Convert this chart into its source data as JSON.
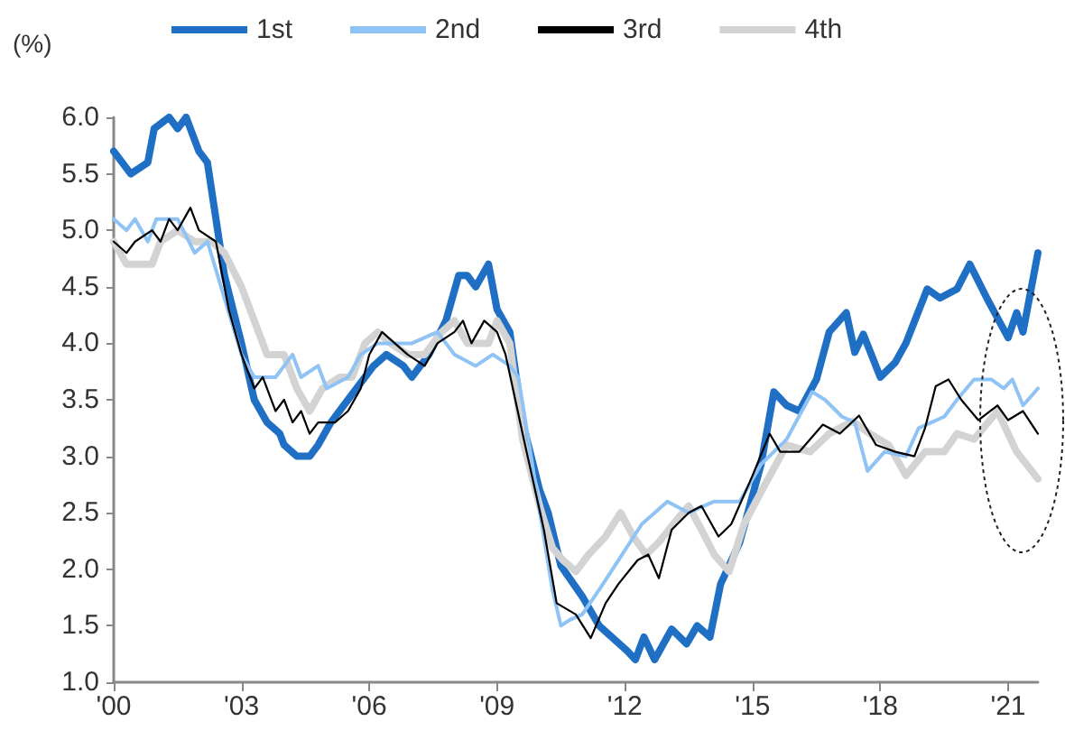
{
  "chart_data": {
    "type": "line",
    "ylabel": "(%)",
    "xlim": [
      2000,
      2021.7
    ],
    "ylim": [
      1.0,
      6.0
    ],
    "xticks": [
      {
        "value": 2000,
        "label": "'00"
      },
      {
        "value": 2003,
        "label": "'03"
      },
      {
        "value": 2006,
        "label": "'06"
      },
      {
        "value": 2009,
        "label": "'09"
      },
      {
        "value": 2012,
        "label": "'12"
      },
      {
        "value": 2015,
        "label": "'15"
      },
      {
        "value": 2018,
        "label": "'18"
      },
      {
        "value": 2021,
        "label": "'21"
      }
    ],
    "yticks": [
      {
        "value": 1,
        "label": "1.0"
      },
      {
        "value": 1.5,
        "label": "1.5"
      },
      {
        "value": 2,
        "label": "2.0"
      },
      {
        "value": 2.5,
        "label": "2.5"
      },
      {
        "value": 3,
        "label": "3.0"
      },
      {
        "value": 3.5,
        "label": "3.5"
      },
      {
        "value": 4,
        "label": "4.0"
      },
      {
        "value": 4.5,
        "label": "4.5"
      },
      {
        "value": 5,
        "label": "5.0"
      },
      {
        "value": 5.5,
        "label": "5.5"
      },
      {
        "value": 6,
        "label": "6.0"
      }
    ],
    "grid": false,
    "legend": "top",
    "marker": "none",
    "line_style": "solid",
    "series": [
      {
        "name": "1st",
        "color": "#1f6fc5",
        "x": [
          2000,
          2000.4,
          2000.8,
          2000.95,
          2001.3,
          2001.5,
          2001.7,
          2002.0,
          2002.2,
          2002.4,
          2002.6,
          2003.0,
          2003.3,
          2003.6,
          2003.9,
          2004.0,
          2004.3,
          2004.6,
          2004.8,
          2005.1,
          2005.3,
          2005.7,
          2006.1,
          2006.4,
          2006.8,
          2007.0,
          2007.4,
          2007.8,
          2008.1,
          2008.3,
          2008.5,
          2008.8,
          2009.0,
          2009.3,
          2009.6,
          2010.0,
          2010.2,
          2010.5,
          2011.0,
          2011.4,
          2012.05,
          2012.25,
          2012.45,
          2012.7,
          2013.1,
          2013.45,
          2013.7,
          2014.0,
          2014.25,
          2014.7,
          2015.2,
          2015.5,
          2015.8,
          2016.1,
          2016.5,
          2016.8,
          2017.2,
          2017.4,
          2017.6,
          2018.0,
          2018.35,
          2018.6,
          2019.1,
          2019.4,
          2019.8,
          2020.1,
          2020.5,
          2021.0,
          2021.2,
          2021.35,
          2021.7
        ],
        "values": [
          5.7,
          5.5,
          5.6,
          5.9,
          6.0,
          5.9,
          6.0,
          5.7,
          5.6,
          5.1,
          4.6,
          4.0,
          3.5,
          3.3,
          3.2,
          3.1,
          3.0,
          3.0,
          3.1,
          3.3,
          3.4,
          3.6,
          3.8,
          3.9,
          3.8,
          3.7,
          3.9,
          4.2,
          4.6,
          4.6,
          4.5,
          4.7,
          4.3,
          4.1,
          3.3,
          2.7,
          2.5,
          2.03,
          1.76,
          1.5,
          1.28,
          1.2,
          1.4,
          1.2,
          1.47,
          1.34,
          1.5,
          1.4,
          1.87,
          2.24,
          2.93,
          3.57,
          3.45,
          3.4,
          3.68,
          4.1,
          4.27,
          3.92,
          4.08,
          3.7,
          3.83,
          4.0,
          4.48,
          4.4,
          4.48,
          4.7,
          4.4,
          4.05,
          4.27,
          4.1,
          4.8
        ]
      },
      {
        "name": "2nd",
        "color": "#8fc3f5",
        "x": [
          2000,
          2000.3,
          2000.5,
          2000.8,
          2001.0,
          2001.5,
          2001.9,
          2002.2,
          2002.6,
          2003.0,
          2003.3,
          2003.8,
          2004.2,
          2004.4,
          2004.8,
          2005.0,
          2005.5,
          2005.8,
          2006.2,
          2007.0,
          2007.6,
          2008.0,
          2008.5,
          2008.9,
          2009.3,
          2009.5,
          2009.8,
          2010.05,
          2010.3,
          2010.5,
          2010.7,
          2011.0,
          2011.4,
          2011.85,
          2012.4,
          2013.0,
          2013.5,
          2014.1,
          2014.7,
          2015.2,
          2015.8,
          2016.4,
          2016.7,
          2017.1,
          2017.4,
          2017.7,
          2018.1,
          2018.6,
          2018.9,
          2019.5,
          2019.8,
          2020.2,
          2020.6,
          2020.9,
          2021.1,
          2021.35,
          2021.7
        ],
        "values": [
          5.1,
          5.0,
          5.1,
          4.9,
          5.1,
          5.1,
          4.8,
          4.9,
          4.4,
          3.9,
          3.7,
          3.7,
          3.9,
          3.7,
          3.8,
          3.6,
          3.7,
          3.9,
          4.0,
          4.0,
          4.1,
          3.9,
          3.8,
          3.9,
          3.8,
          3.7,
          3.0,
          2.4,
          1.82,
          1.5,
          1.55,
          1.6,
          1.82,
          2.08,
          2.4,
          2.6,
          2.5,
          2.6,
          2.6,
          2.93,
          3.15,
          3.57,
          3.5,
          3.35,
          3.3,
          2.87,
          3.04,
          3.0,
          3.25,
          3.35,
          3.5,
          3.68,
          3.68,
          3.6,
          3.68,
          3.45,
          3.6
        ]
      },
      {
        "name": "3rd",
        "color": "#000000",
        "x": [
          2000,
          2000.3,
          2000.5,
          2000.9,
          2001.1,
          2001.3,
          2001.5,
          2001.8,
          2002.0,
          2002.4,
          2002.7,
          2003.0,
          2003.3,
          2003.5,
          2003.8,
          2004.0,
          2004.2,
          2004.4,
          2004.6,
          2004.8,
          2005.2,
          2005.5,
          2005.8,
          2006.0,
          2006.3,
          2006.6,
          2006.9,
          2007.3,
          2007.6,
          2008.0,
          2008.2,
          2008.4,
          2008.7,
          2009.0,
          2009.2,
          2009.6,
          2010.1,
          2010.4,
          2010.85,
          2011.2,
          2011.55,
          2011.85,
          2012.3,
          2012.55,
          2012.8,
          2013.1,
          2013.5,
          2013.8,
          2014.2,
          2014.5,
          2015.0,
          2015.4,
          2015.65,
          2016.1,
          2016.65,
          2017.05,
          2017.5,
          2017.9,
          2018.35,
          2018.8,
          2019.05,
          2019.3,
          2019.6,
          2019.9,
          2020.3,
          2020.75,
          2021.0,
          2021.35,
          2021.7
        ],
        "values": [
          4.9,
          4.8,
          4.9,
          5.0,
          4.9,
          5.1,
          5.0,
          5.2,
          5.0,
          4.9,
          4.3,
          3.9,
          3.6,
          3.7,
          3.4,
          3.5,
          3.3,
          3.4,
          3.2,
          3.3,
          3.3,
          3.4,
          3.6,
          3.9,
          4.1,
          4.0,
          3.9,
          3.8,
          4.0,
          4.1,
          4.2,
          4.0,
          4.2,
          4.1,
          3.9,
          3.2,
          2.35,
          1.7,
          1.6,
          1.39,
          1.7,
          1.87,
          2.08,
          2.13,
          1.92,
          2.35,
          2.5,
          2.56,
          2.29,
          2.4,
          2.83,
          3.2,
          3.04,
          3.04,
          3.28,
          3.2,
          3.36,
          3.1,
          3.04,
          3.0,
          3.25,
          3.62,
          3.68,
          3.5,
          3.32,
          3.45,
          3.32,
          3.4,
          3.2
        ]
      },
      {
        "name": "4th",
        "color": "#d3d3d3",
        "x": [
          2000,
          2000.3,
          2000.9,
          2001.1,
          2001.5,
          2001.9,
          2002.3,
          2002.6,
          2003.0,
          2003.3,
          2003.6,
          2004.0,
          2004.3,
          2004.6,
          2004.9,
          2005.3,
          2005.6,
          2005.9,
          2006.2,
          2006.5,
          2006.9,
          2007.3,
          2007.7,
          2008.0,
          2008.3,
          2008.8,
          2009.0,
          2009.3,
          2009.6,
          2010.0,
          2010.3,
          2010.55,
          2010.85,
          2011.15,
          2011.55,
          2011.9,
          2012.2,
          2012.5,
          2012.8,
          2013.25,
          2013.5,
          2013.8,
          2014.1,
          2014.45,
          2014.8,
          2015.25,
          2015.8,
          2016.35,
          2016.8,
          2017.35,
          2017.75,
          2018.2,
          2018.6,
          2019.05,
          2019.5,
          2019.8,
          2020.2,
          2020.75,
          2021.2,
          2021.7
        ],
        "values": [
          4.9,
          4.7,
          4.7,
          4.9,
          5.0,
          4.9,
          4.9,
          4.8,
          4.5,
          4.2,
          3.9,
          3.9,
          3.6,
          3.4,
          3.6,
          3.7,
          3.7,
          4.0,
          4.1,
          4.0,
          3.9,
          3.9,
          4.1,
          4.2,
          4.0,
          4.0,
          4.2,
          4.0,
          3.15,
          2.56,
          2.19,
          2.08,
          1.98,
          2.13,
          2.29,
          2.5,
          2.29,
          2.13,
          2.24,
          2.45,
          2.56,
          2.35,
          2.13,
          1.98,
          2.4,
          2.72,
          3.1,
          3.04,
          3.2,
          3.31,
          3.2,
          3.1,
          2.83,
          3.04,
          3.04,
          3.2,
          3.15,
          3.4,
          3.04,
          2.8
        ]
      }
    ]
  }
}
